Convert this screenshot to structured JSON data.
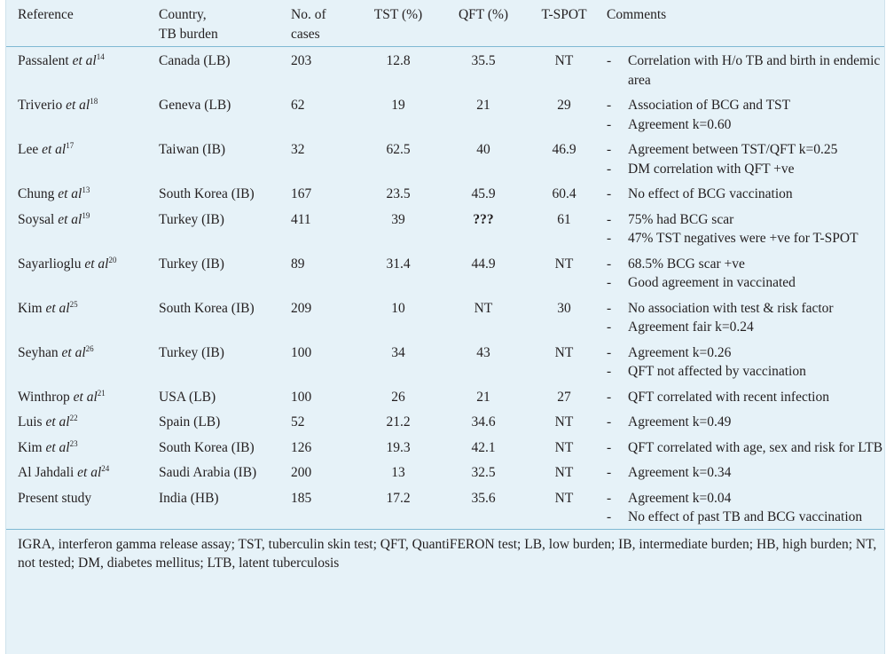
{
  "table": {
    "headers": {
      "reference": "Reference",
      "country_line1": "Country,",
      "country_line2": "TB burden",
      "cases_line1": "No. of",
      "cases_line2": "cases",
      "tst": "TST (%)",
      "qft": "QFT (%)",
      "tspot": "T-SPOT",
      "comments": "Comments"
    },
    "rows": [
      {
        "author": "Passalent ",
        "etal": "et al",
        "ref": "14",
        "country": "Canada (LB)",
        "cases": "203",
        "tst": "12.8",
        "qft": "35.5",
        "tspot": "NT",
        "comments": [
          "Correlation with H/o TB and birth in endemic area"
        ]
      },
      {
        "author": "Triverio ",
        "etal": "et al",
        "ref": "18",
        "country": "Geneva (LB)",
        "cases": "62",
        "tst": "19",
        "qft": "21",
        "tspot": "29",
        "comments": [
          "Association of BCG and TST",
          "Agreement k=0.60"
        ]
      },
      {
        "author": "Lee ",
        "etal": "et al",
        "ref": "17",
        "country": "Taiwan (IB)",
        "cases": "32",
        "tst": "62.5",
        "qft": "40",
        "tspot": "46.9",
        "comments": [
          "Agreement between TST/QFT k=0.25",
          "DM correlation with QFT +ve"
        ]
      },
      {
        "author": "Chung ",
        "etal": "et al",
        "ref": "13",
        "country": "South Korea (IB)",
        "cases": "167",
        "tst": "23.5",
        "qft": "45.9",
        "tspot": "60.4",
        "comments": [
          "No effect of BCG vaccination"
        ]
      },
      {
        "author": "Soysal ",
        "etal": "et al",
        "ref": "19",
        "country": "Turkey (IB)",
        "cases": "411",
        "tst": "39",
        "qft": "???",
        "tspot": "61",
        "comments": [
          "75% had BCG scar",
          "47% TST negatives were +ve for T-SPOT"
        ]
      },
      {
        "author": "Sayarlioglu ",
        "etal": "et al",
        "ref": "20",
        "country": "Turkey (IB)",
        "cases": "89",
        "tst": "31.4",
        "qft": "44.9",
        "tspot": "NT",
        "comments": [
          "68.5% BCG scar +ve",
          "Good agreement in vaccinated"
        ]
      },
      {
        "author": "Kim ",
        "etal": "et al",
        "ref": "25",
        "country": "South Korea (IB)",
        "cases": "209",
        "tst": "10",
        "qft": "NT",
        "tspot": "30",
        "comments": [
          "No association with test & risk factor",
          "Agreement fair k=0.24"
        ]
      },
      {
        "author": "Seyhan ",
        "etal": "et al",
        "ref": "26",
        "country": "Turkey (IB)",
        "cases": "100",
        "tst": "34",
        "qft": "43",
        "tspot": "NT",
        "comments": [
          "Agreement k=0.26",
          "QFT not affected by vaccination"
        ]
      },
      {
        "author": "Winthrop ",
        "etal": "et al",
        "ref": "21",
        "country": "USA (LB)",
        "cases": "100",
        "tst": "26",
        "qft": "21",
        "tspot": "27",
        "comments": [
          "QFT correlated with recent infection"
        ]
      },
      {
        "author": "Luis ",
        "etal": "et al",
        "ref": "22",
        "country": "Spain (LB)",
        "cases": "52",
        "tst": "21.2",
        "qft": "34.6",
        "tspot": "NT",
        "comments": [
          "Agreement k=0.49"
        ]
      },
      {
        "author": "Kim ",
        "etal": "et al",
        "ref": "23",
        "country": "South Korea (IB)",
        "cases": "126",
        "tst": "19.3",
        "qft": "42.1",
        "tspot": "NT",
        "comments": [
          "QFT correlated with age, sex and risk for LTB"
        ]
      },
      {
        "author": "Al Jahdali ",
        "etal": "et al",
        "ref": "24",
        "country": "Saudi Arabia (IB)",
        "cases": "200",
        "tst": "13",
        "qft": "32.5",
        "tspot": "NT",
        "comments": [
          "Agreement k=0.34"
        ]
      },
      {
        "author": "Present study",
        "etal": "",
        "ref": "",
        "country": "India (HB)",
        "cases": "185",
        "tst": "17.2",
        "qft": "35.6",
        "tspot": "NT",
        "comments": [
          "Agreement k=0.04",
          "No effect of past TB and BCG vaccination"
        ]
      }
    ],
    "footnote": "IGRA, interferon gamma release assay; TST, tuberculin skin test; QFT, QuantiFERON test; LB, low burden; IB, intermediate burden; HB, high burden; NT, not tested; DM, diabetes mellitus; LTB, latent tuberculosis",
    "bullet": "-"
  }
}
